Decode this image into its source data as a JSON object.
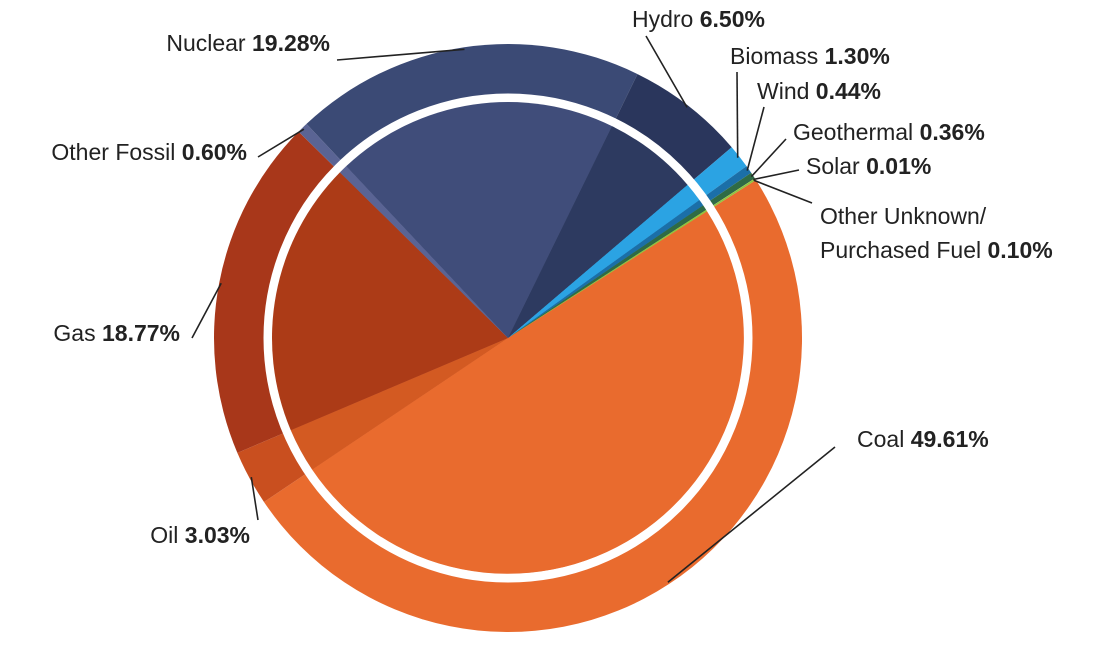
{
  "chart_data": {
    "type": "pie",
    "categories": [
      "Coal",
      "Oil",
      "Gas",
      "Other Fossil",
      "Nuclear",
      "Hydro",
      "Biomass",
      "Wind",
      "Geothermal",
      "Solar",
      "Other Unknown/ Purchased Fuel"
    ],
    "values": [
      49.61,
      3.03,
      18.77,
      0.6,
      19.28,
      6.5,
      1.3,
      0.44,
      0.36,
      0.01,
      0.1
    ],
    "slices": [
      {
        "name": "Coal",
        "value": 49.61,
        "label": "Coal",
        "pct": "49.61%",
        "color": "#E96B2E",
        "inner_color": "#E96B2E"
      },
      {
        "name": "Oil",
        "value": 3.03,
        "label": "Oil",
        "pct": "3.03%",
        "color": "#C94F1F",
        "inner_color": "#D35A22"
      },
      {
        "name": "Gas",
        "value": 18.77,
        "label": "Gas",
        "pct": "18.77%",
        "color": "#A8371A",
        "inner_color": "#AC3B17"
      },
      {
        "name": "Other Fossil",
        "value": 0.6,
        "label": "Other Fossil",
        "pct": "0.60%",
        "color": "#5A6494",
        "inner_color": "#5A6494"
      },
      {
        "name": "Nuclear",
        "value": 19.28,
        "label": "Nuclear",
        "pct": "19.28%",
        "color": "#3B4A75",
        "inner_color": "#404D7A"
      },
      {
        "name": "Hydro",
        "value": 6.5,
        "label": "Hydro",
        "pct": "6.50%",
        "color": "#2A365C",
        "inner_color": "#2D3A60"
      },
      {
        "name": "Biomass",
        "value": 1.3,
        "label": "Biomass",
        "pct": "1.30%",
        "color": "#2BA3E3",
        "inner_color": "#2BA3E3"
      },
      {
        "name": "Wind",
        "value": 0.44,
        "label": "Wind",
        "pct": "0.44%",
        "color": "#1B6FA8",
        "inner_color": "#1B6FA8"
      },
      {
        "name": "Geothermal",
        "value": 0.36,
        "label": "Geothermal",
        "pct": "0.36%",
        "color": "#2F6B45",
        "inner_color": "#2F6B45"
      },
      {
        "name": "Solar",
        "value": 0.01,
        "label": "Solar",
        "pct": "0.01%",
        "color": "#F2C12E",
        "inner_color": "#F2C12E"
      },
      {
        "name": "Other Unknown/ Purchased Fuel",
        "value": 0.1,
        "label_lines": [
          "Other Unknown/",
          "Purchased Fuel"
        ],
        "pct": "0.10%",
        "color": "#8DC63F",
        "inner_color": "#8DC63F"
      }
    ]
  }
}
